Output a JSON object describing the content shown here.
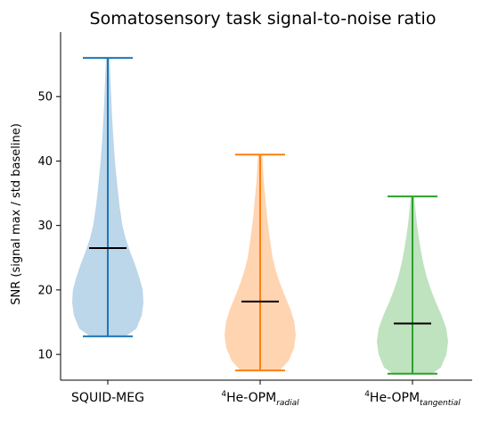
{
  "chart_data": {
    "type": "violin",
    "title": "Somatosensory task signal-to-noise ratio",
    "ylabel": "SNR (signal max / std baseline)",
    "xlabel": "",
    "ylim": [
      6,
      60
    ],
    "yticks": [
      10,
      20,
      30,
      40,
      50
    ],
    "grid": false,
    "categories": [
      {
        "base": "SQUID-MEG",
        "sup": "",
        "sub": ""
      },
      {
        "base": "He-OPM",
        "sup": "4",
        "sub": "radial"
      },
      {
        "base": "He-OPM",
        "sup": "4",
        "sub": "tangential"
      }
    ],
    "series": [
      {
        "min": 12.8,
        "max": 56.0,
        "median": 26.5,
        "color": "#1f77b4",
        "fill": "#bcd6ea",
        "density": [
          [
            12.8,
            0.5
          ],
          [
            14,
            0.8
          ],
          [
            16,
            0.95
          ],
          [
            18,
            1.0
          ],
          [
            20,
            0.98
          ],
          [
            22,
            0.88
          ],
          [
            24,
            0.76
          ],
          [
            26,
            0.62
          ],
          [
            28,
            0.5
          ],
          [
            30,
            0.41
          ],
          [
            33,
            0.33
          ],
          [
            36,
            0.27
          ],
          [
            40,
            0.2
          ],
          [
            44,
            0.15
          ],
          [
            48,
            0.11
          ],
          [
            52,
            0.08
          ],
          [
            56,
            0.05
          ]
        ]
      },
      {
        "min": 7.5,
        "max": 41.0,
        "median": 18.2,
        "color": "#ff7f0e",
        "fill": "#ffd4b0",
        "density": [
          [
            7.5,
            0.55
          ],
          [
            9,
            0.8
          ],
          [
            11,
            0.95
          ],
          [
            13,
            1.0
          ],
          [
            15,
            0.96
          ],
          [
            17,
            0.85
          ],
          [
            19,
            0.7
          ],
          [
            21,
            0.56
          ],
          [
            23,
            0.44
          ],
          [
            25,
            0.35
          ],
          [
            28,
            0.27
          ],
          [
            31,
            0.2
          ],
          [
            34,
            0.15
          ],
          [
            37,
            0.1
          ],
          [
            41,
            0.06
          ]
        ]
      },
      {
        "min": 7.0,
        "max": 34.5,
        "median": 14.8,
        "color": "#2ca02c",
        "fill": "#bfe2bf",
        "density": [
          [
            7.0,
            0.55
          ],
          [
            8,
            0.8
          ],
          [
            10,
            0.95
          ],
          [
            12,
            1.0
          ],
          [
            14,
            0.95
          ],
          [
            16,
            0.82
          ],
          [
            18,
            0.66
          ],
          [
            20,
            0.52
          ],
          [
            22,
            0.4
          ],
          [
            24,
            0.31
          ],
          [
            26,
            0.24
          ],
          [
            28,
            0.18
          ],
          [
            30,
            0.13
          ],
          [
            32,
            0.09
          ],
          [
            34.5,
            0.05
          ]
        ]
      }
    ]
  }
}
